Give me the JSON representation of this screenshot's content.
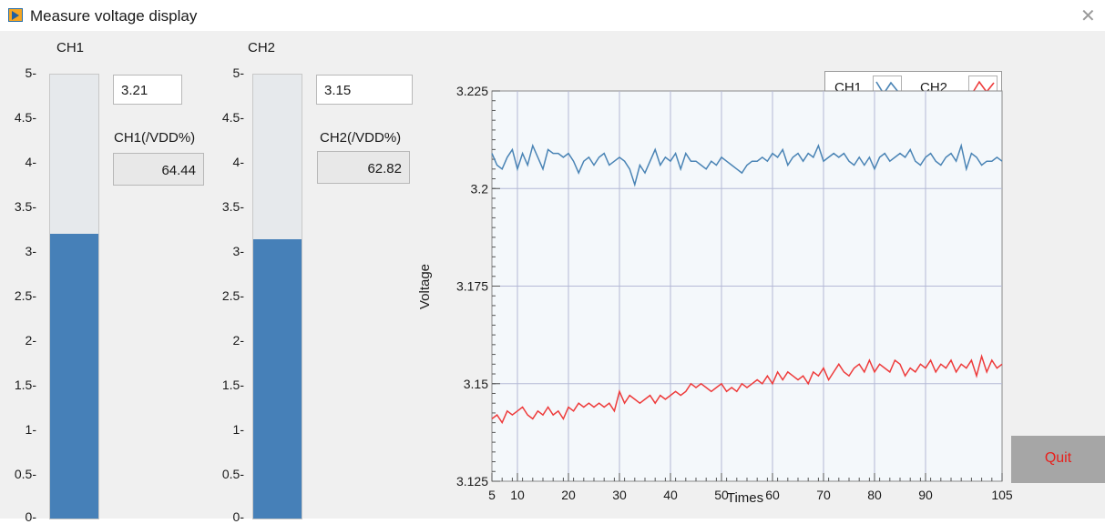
{
  "window": {
    "title": "Measure voltage display",
    "close_glyph": "✕"
  },
  "channels": [
    {
      "name": "CH1",
      "value": "3.21",
      "level": 3.21,
      "pct_label": "CH1(/VDD%)",
      "pct_value": "64.44"
    },
    {
      "name": "CH2",
      "value": "3.15",
      "level": 3.15,
      "pct_label": "CH2(/VDD%)",
      "pct_value": "62.82"
    }
  ],
  "tank_scale": {
    "min": 0,
    "max": 5,
    "ticks": [
      "5-",
      "4.5-",
      "4-",
      "3.5-",
      "3-",
      "2.5-",
      "2-",
      "1.5-",
      "1-",
      "0.5-",
      "0-"
    ]
  },
  "legend": {
    "ch1": "CH1",
    "ch2": "CH2"
  },
  "quit_label": "Quit",
  "colors": {
    "ch1": "#4a84b5",
    "ch2": "#ee3b3b",
    "tank_fill": "#4680b8",
    "quit_text": "#e8201c"
  },
  "chart_data": {
    "type": "line",
    "xlabel": "Times",
    "ylabel": "Voltage",
    "xlim": [
      5,
      105
    ],
    "ylim": [
      3.125,
      3.225
    ],
    "x_ticks": [
      "5",
      "10",
      "20",
      "30",
      "40",
      "50",
      "60",
      "70",
      "80",
      "90",
      "105"
    ],
    "y_ticks": [
      "3.225",
      "3.2",
      "3.175",
      "3.15",
      "3.125"
    ],
    "grid": true,
    "legend_position": "top-right",
    "series": [
      {
        "name": "CH1",
        "color": "#4a84b5",
        "x_start": 5,
        "x_step": 1,
        "values": [
          3.209,
          3.206,
          3.205,
          3.208,
          3.21,
          3.205,
          3.209,
          3.206,
          3.211,
          3.208,
          3.205,
          3.21,
          3.209,
          3.209,
          3.208,
          3.209,
          3.207,
          3.204,
          3.207,
          3.208,
          3.206,
          3.208,
          3.209,
          3.206,
          3.207,
          3.208,
          3.207,
          3.205,
          3.201,
          3.206,
          3.204,
          3.207,
          3.21,
          3.206,
          3.208,
          3.207,
          3.209,
          3.205,
          3.209,
          3.207,
          3.207,
          3.206,
          3.205,
          3.207,
          3.206,
          3.208,
          3.207,
          3.206,
          3.205,
          3.204,
          3.206,
          3.207,
          3.207,
          3.208,
          3.207,
          3.209,
          3.208,
          3.21,
          3.206,
          3.208,
          3.209,
          3.207,
          3.209,
          3.208,
          3.211,
          3.207,
          3.208,
          3.209,
          3.208,
          3.209,
          3.207,
          3.206,
          3.208,
          3.206,
          3.208,
          3.205,
          3.208,
          3.209,
          3.207,
          3.208,
          3.209,
          3.208,
          3.21,
          3.207,
          3.206,
          3.208,
          3.209,
          3.207,
          3.206,
          3.208,
          3.209,
          3.207,
          3.211,
          3.205,
          3.209,
          3.208,
          3.206,
          3.207,
          3.207,
          3.208,
          3.207
        ]
      },
      {
        "name": "CH2",
        "color": "#ee3b3b",
        "x_start": 5,
        "x_step": 1,
        "values": [
          3.141,
          3.142,
          3.14,
          3.143,
          3.142,
          3.143,
          3.144,
          3.142,
          3.141,
          3.143,
          3.142,
          3.144,
          3.142,
          3.143,
          3.141,
          3.144,
          3.143,
          3.145,
          3.144,
          3.145,
          3.144,
          3.145,
          3.144,
          3.145,
          3.143,
          3.148,
          3.145,
          3.147,
          3.146,
          3.145,
          3.146,
          3.147,
          3.145,
          3.147,
          3.146,
          3.147,
          3.148,
          3.147,
          3.148,
          3.15,
          3.149,
          3.15,
          3.149,
          3.148,
          3.149,
          3.15,
          3.148,
          3.149,
          3.148,
          3.15,
          3.149,
          3.15,
          3.151,
          3.15,
          3.152,
          3.15,
          3.153,
          3.151,
          3.153,
          3.152,
          3.151,
          3.152,
          3.15,
          3.153,
          3.152,
          3.154,
          3.151,
          3.153,
          3.155,
          3.153,
          3.152,
          3.154,
          3.155,
          3.153,
          3.156,
          3.153,
          3.155,
          3.154,
          3.153,
          3.156,
          3.155,
          3.152,
          3.154,
          3.153,
          3.155,
          3.154,
          3.156,
          3.153,
          3.155,
          3.154,
          3.156,
          3.153,
          3.155,
          3.154,
          3.156,
          3.152,
          3.157,
          3.153,
          3.156,
          3.154,
          3.155
        ]
      }
    ]
  }
}
